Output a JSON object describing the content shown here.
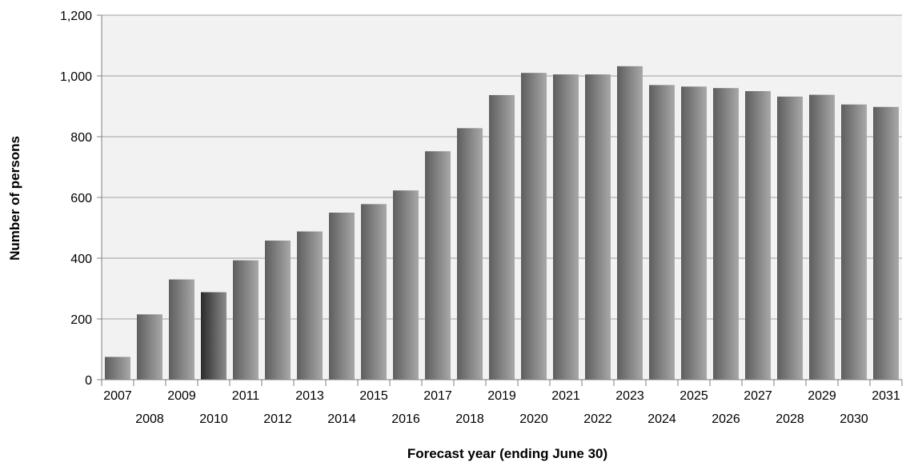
{
  "chart_data": {
    "type": "bar",
    "categories": [
      "2007",
      "2008",
      "2009",
      "2010",
      "2011",
      "2012",
      "2013",
      "2014",
      "2015",
      "2016",
      "2017",
      "2018",
      "2019",
      "2020",
      "2021",
      "2022",
      "2023",
      "2024",
      "2025",
      "2026",
      "2027",
      "2028",
      "2029",
      "2030",
      "2031"
    ],
    "values": [
      75,
      215,
      330,
      288,
      393,
      458,
      488,
      550,
      578,
      623,
      752,
      828,
      937,
      1010,
      1005,
      1005,
      1032,
      970,
      965,
      960,
      950,
      932,
      938,
      906,
      898
    ],
    "highlight_category": "2010",
    "xlabel": "Forecast year (ending June 30)",
    "ylabel": "Number of persons",
    "ylim": [
      0,
      1200
    ],
    "yticks": [
      0,
      200,
      400,
      600,
      800,
      1000,
      1200
    ],
    "ytick_labels": [
      "0",
      "200",
      "400",
      "600",
      "800",
      "1,000",
      "1,200"
    ],
    "grid": true,
    "legend": "none",
    "colors": {
      "plot_background": "#f2f2f2",
      "bar_dark": "#5e5e5e",
      "bar_light": "#a8a8a8",
      "highlight_dark": "#2a2a2a",
      "highlight_light": "#8c8c8c",
      "grid": "#a0a0a0",
      "axis": "#808080"
    }
  }
}
